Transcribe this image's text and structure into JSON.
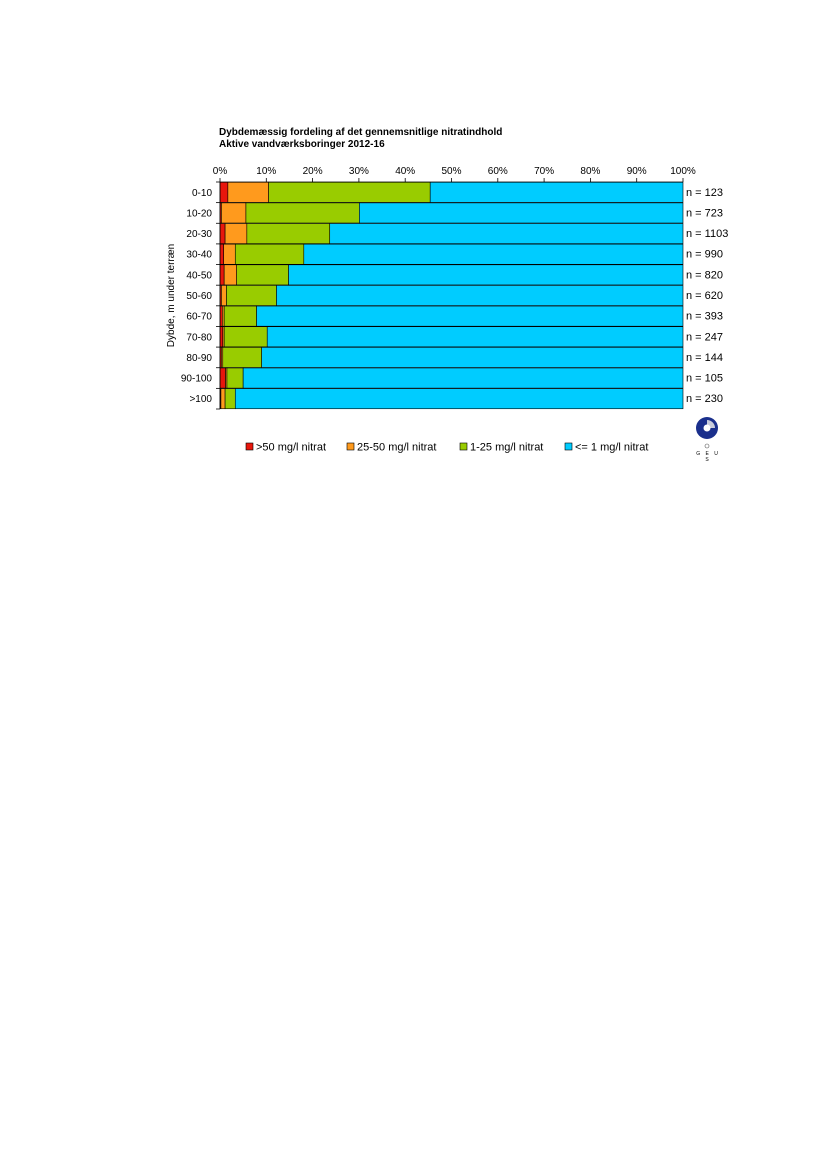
{
  "chart_data": {
    "type": "bar",
    "orientation": "horizontal",
    "stacked": "percent",
    "title": "Dybdemæssig fordeling af det gennemsnitlige nitratindhold",
    "subtitle": "Aktive vandværksboringer 2012-16",
    "ylabel": "Dybde, m under terræn",
    "xlim": [
      0,
      100
    ],
    "x_ticks": [
      "0%",
      "10%",
      "20%",
      "30%",
      "40%",
      "50%",
      "60%",
      "70%",
      "80%",
      "90%",
      "100%"
    ],
    "categories": [
      "0-10",
      "10-20",
      "20-30",
      "30-40",
      "40-50",
      "50-60",
      "60-70",
      "70-80",
      "80-90",
      "90-100",
      ">100"
    ],
    "counts": [
      "n = 123",
      "n = 723",
      "n = 1103",
      "n = 990",
      "n = 820",
      "n = 620",
      "n = 393",
      "n = 247",
      "n = 144",
      "n = 105",
      "n = 230"
    ],
    "series": [
      {
        "name": ">50 mg/l nitrat",
        "color": "#e8160c",
        "values": [
          1.7,
          0.3,
          1.1,
          0.8,
          0.9,
          0.3,
          0.5,
          0.6,
          0.3,
          1.2,
          0.2
        ]
      },
      {
        "name": "25-50 mg/l nitrat",
        "color": "#ff9a1d",
        "values": [
          8.8,
          5.3,
          4.7,
          2.5,
          2.7,
          1.1,
          0.4,
          0.3,
          0.3,
          0.3,
          0.9
        ]
      },
      {
        "name": "1-25 mg/l nitrat",
        "color": "#99cc00",
        "values": [
          34.9,
          24.5,
          17.9,
          14.8,
          11.2,
          10.8,
          7.0,
          9.3,
          8.4,
          3.5,
          2.2
        ]
      },
      {
        "name": "<= 1 mg/l nitrat",
        "color": "#00ccff",
        "values": [
          54.6,
          69.9,
          76.3,
          81.9,
          85.2,
          87.8,
          92.1,
          89.8,
          91.0,
          95.0,
          96.7
        ]
      }
    ],
    "legend_position": "bottom",
    "grid": false
  },
  "logo": {
    "text": "G E U S"
  }
}
